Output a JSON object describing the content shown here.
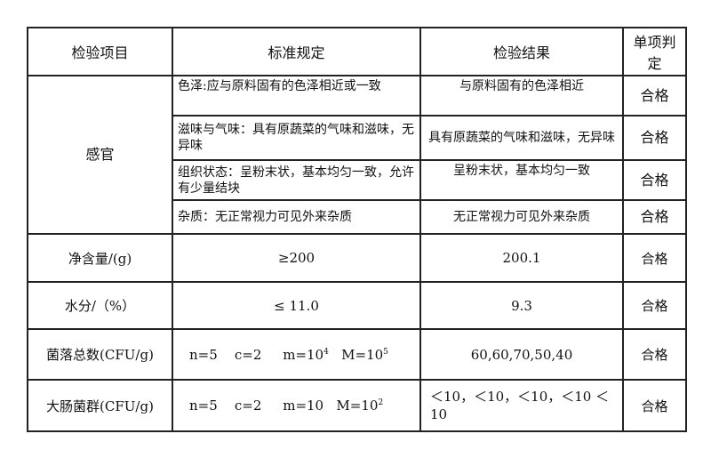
{
  "headers": [
    "检验项目",
    "标准规定",
    "检验结果",
    "单项判定"
  ],
  "sensory": {
    "item": "感官",
    "rows": [
      {
        "standard": "色泽:应与原料固有的色泽相近或一致",
        "result": "与原料固有的色泽相近",
        "verdict": "合格"
      },
      {
        "standard": "滋味与气味：具有原蔬菜的气味和滋味，无异味",
        "result": "具有原蔬菜的气味和滋味，无异味",
        "verdict": "合格"
      },
      {
        "standard": "组织状态：呈粉末状，基本均匀一致，允许有少量结块",
        "result": "呈粉末状，基本均匀一致",
        "verdict": "合格"
      },
      {
        "standard": "杂质：无正常视力可见外来杂质",
        "result": "无正常视力可见外来杂质",
        "verdict": "合格"
      }
    ]
  },
  "net": {
    "item": "净含量/(g)",
    "standard": "≥200",
    "result": "200.1",
    "verdict": "合格"
  },
  "moisture": {
    "item": "水分/（%）",
    "standard": "≤ 11.0",
    "result": "9.3",
    "verdict": "合格"
  },
  "colony": {
    "item": "菌落总数(CFU/g)",
    "n": "n=5",
    "c": "c=2",
    "m": "m=10",
    "m_exp": "4",
    "M": "M=10",
    "M_exp": "5",
    "result": "60,60,70,50,40",
    "verdict": "合格"
  },
  "coliform": {
    "item": "大肠菌群(CFU/g)",
    "n": "n=5",
    "c": "c=2",
    "m": "m=10",
    "M": "M=10",
    "M_exp": "2",
    "result": "＜10，＜10，＜10，＜10 ＜10",
    "verdict": "合格"
  }
}
